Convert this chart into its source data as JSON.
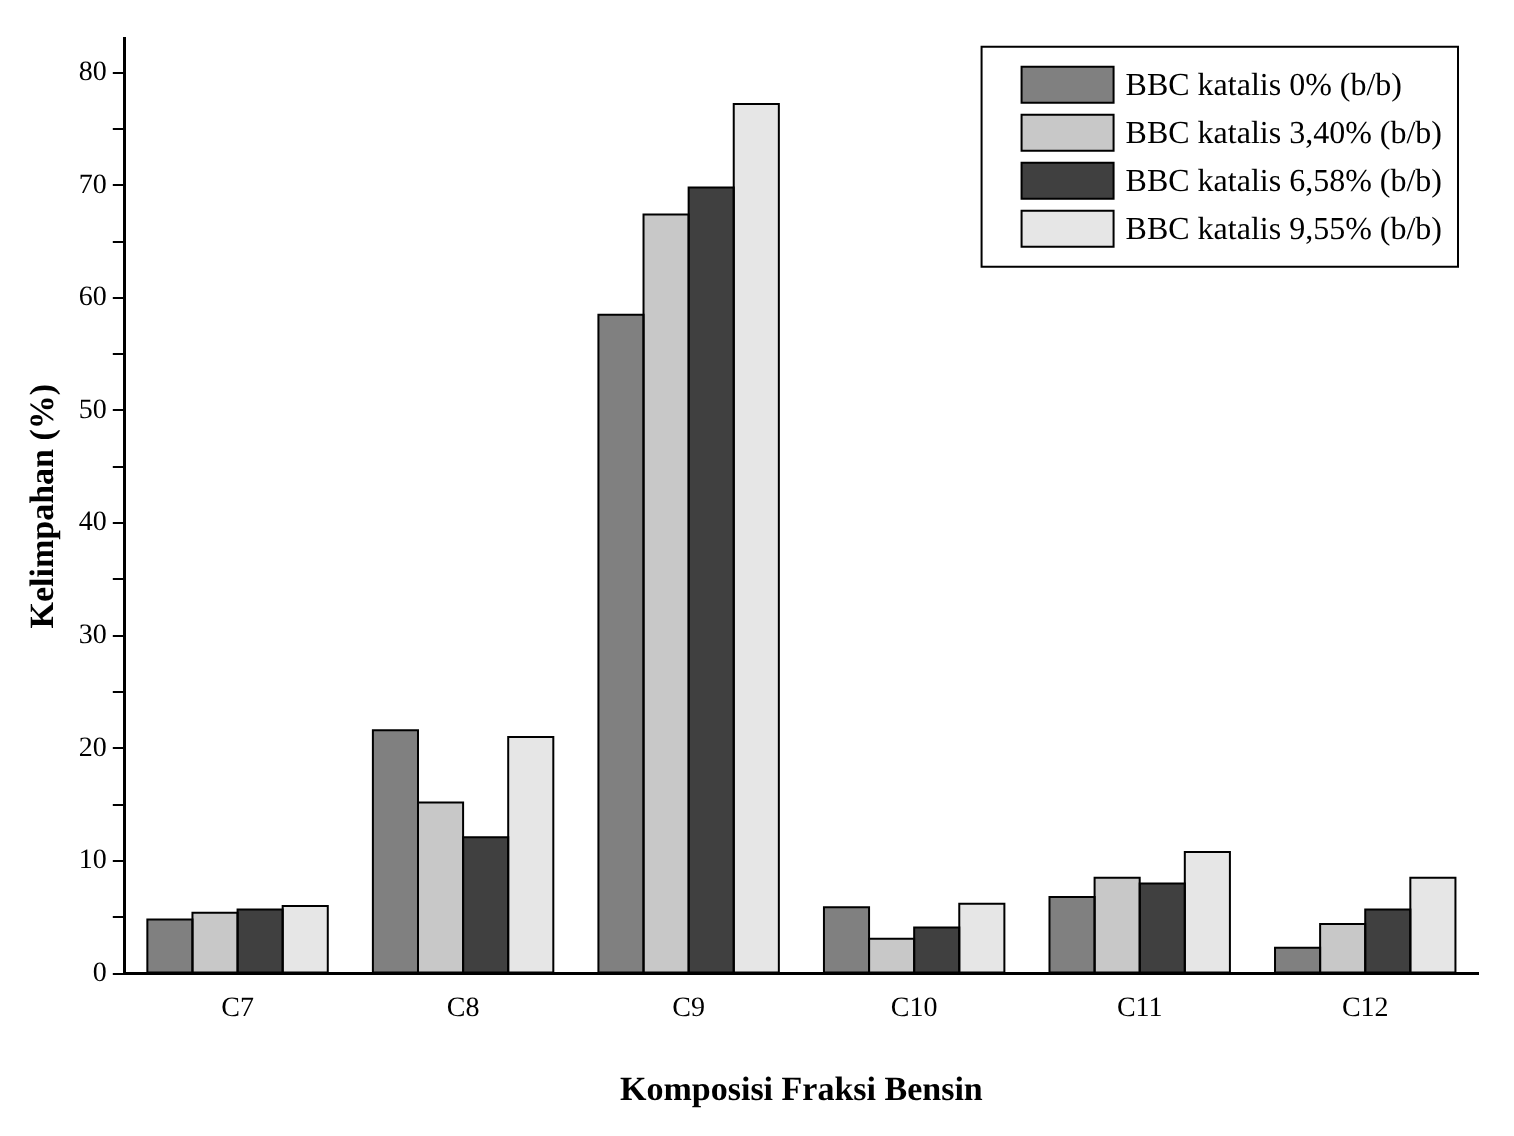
{
  "chart_data": {
    "type": "bar",
    "xlabel": "Komposisi Fraksi Bensin",
    "ylabel": "Kelimpahan (%)",
    "categories": [
      "C7",
      "C8",
      "C9",
      "C10",
      "C11",
      "C12"
    ],
    "series": [
      {
        "name": "BBC katalis 0% (b/b)",
        "color": "#808080",
        "values": [
          4.8,
          21.6,
          58.5,
          5.9,
          6.8,
          2.3
        ]
      },
      {
        "name": "BBC katalis 3,40% (b/b)",
        "color": "#c8c8c8",
        "values": [
          5.4,
          15.2,
          67.4,
          3.1,
          8.5,
          4.4
        ]
      },
      {
        "name": "BBC katalis 6,58% (b/b)",
        "color": "#404040",
        "values": [
          5.7,
          12.1,
          69.8,
          4.1,
          8.0,
          5.7
        ]
      },
      {
        "name": "BBC katalis 9,55% (b/b)",
        "color": "#e6e6e6",
        "values": [
          6.0,
          21.0,
          77.2,
          6.2,
          10.8,
          8.5
        ]
      }
    ],
    "ylim": [
      0,
      83
    ],
    "yticks": [
      0,
      {
        "value": 5,
        "label": null
      },
      10,
      {
        "value": 15,
        "label": null
      },
      20,
      {
        "value": 25,
        "label": null
      },
      30,
      {
        "value": 35,
        "label": null
      },
      40,
      {
        "value": 45,
        "label": null
      },
      50,
      {
        "value": 55,
        "label": null
      },
      60,
      {
        "value": 65,
        "label": null
      },
      70,
      {
        "value": 75,
        "label": null
      },
      80
    ],
    "grid": false,
    "legend": "top right"
  }
}
